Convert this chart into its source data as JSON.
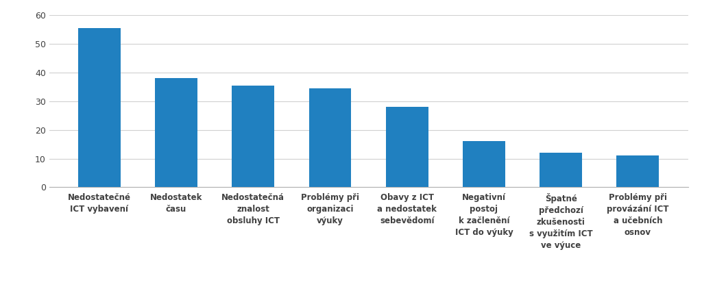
{
  "categories": [
    "Nedostatečné\nICT vybavení",
    "Nedostatek\nčasu",
    "Nedostatečná\nznalost\nobsluhy ICT",
    "Problémy při\norganizaci\nvýuky",
    "Obavy z ICT\na nedostatek\nsebevědomí",
    "Negativní\npostoj\nk začlenění\nICT do výuky",
    "Špatné\npředchozí\nzkušenosti\ns využitím ICT\nve výuce",
    "Problémy při\nprovázání ICT\na učebních\nosnov"
  ],
  "values": [
    55.5,
    38.0,
    35.5,
    34.5,
    28.0,
    16.0,
    12.0,
    11.0
  ],
  "bar_color": "#2080c0",
  "ylim": [
    0,
    60
  ],
  "yticks": [
    0,
    10,
    20,
    30,
    40,
    50,
    60
  ],
  "background_color": "#ffffff",
  "grid_color": "#d0d0d0",
  "tick_label_fontsize": 8.5,
  "axis_tick_fontsize": 9,
  "bar_width": 0.55
}
